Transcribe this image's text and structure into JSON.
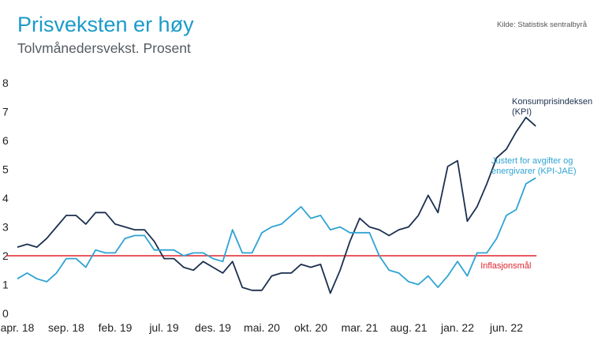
{
  "title": "Prisveksten er høy",
  "subtitle": "Tolvmånedersvekst. Prosent",
  "source": "Kilde: Statistisk sentralbyrå",
  "colors": {
    "kpi": "#1b2f4e",
    "kpi_jae": "#2fa3d3",
    "target": "#e0242c",
    "title": "#1a9bc9"
  },
  "chart_data": {
    "type": "line",
    "title": "Prisveksten er høy",
    "subtitle": "Tolvmånedersvekst. Prosent",
    "xlabel": "",
    "ylabel": "",
    "ylim": [
      0,
      8
    ],
    "yticks": [
      0,
      1,
      2,
      3,
      4,
      5,
      6,
      7,
      8
    ],
    "grid": false,
    "x_start": "apr. 18",
    "x_end": "aug. 22",
    "xtick_labels": [
      "apr. 18",
      "sep. 18",
      "feb. 19",
      "jul. 19",
      "des. 19",
      "mai. 20",
      "okt. 20",
      "mar. 21",
      "aug. 21",
      "jan. 22",
      "jun. 22"
    ],
    "series": [
      {
        "name": "Konsumprisindeksen (KPI)",
        "label_lines": [
          "Konsumprisindeksen",
          "(KPI)"
        ],
        "values": [
          2.3,
          2.4,
          2.3,
          2.6,
          3.0,
          3.4,
          3.4,
          3.1,
          3.5,
          3.5,
          3.1,
          3.0,
          2.9,
          2.9,
          2.5,
          1.9,
          1.9,
          1.6,
          1.5,
          1.8,
          1.6,
          1.4,
          1.8,
          0.9,
          0.8,
          0.8,
          1.3,
          1.4,
          1.4,
          1.7,
          1.6,
          1.7,
          0.7,
          1.5,
          2.5,
          3.3,
          3.0,
          2.9,
          2.7,
          2.9,
          3.0,
          3.4,
          4.1,
          3.5,
          5.1,
          5.3,
          3.2,
          3.7,
          4.5,
          5.4,
          5.7,
          6.3,
          6.8,
          6.5
        ]
      },
      {
        "name": "Justert for avgifter og energivarer (KPI-JAE)",
        "label_lines": [
          "Justert for avgifter og",
          "energivarer (KPI-JAE)"
        ],
        "values": [
          1.2,
          1.4,
          1.2,
          1.1,
          1.4,
          1.9,
          1.9,
          1.6,
          2.2,
          2.1,
          2.1,
          2.6,
          2.7,
          2.7,
          2.2,
          2.2,
          2.2,
          2.0,
          2.1,
          2.1,
          1.9,
          1.8,
          2.9,
          2.1,
          2.1,
          2.8,
          3.0,
          3.1,
          3.4,
          3.7,
          3.3,
          3.4,
          2.9,
          3.0,
          2.8,
          2.8,
          2.8,
          2.0,
          1.5,
          1.4,
          1.1,
          1.0,
          1.3,
          0.9,
          1.3,
          1.8,
          1.3,
          2.1,
          2.1,
          2.6,
          3.4,
          3.6,
          4.5,
          4.7
        ]
      }
    ],
    "reference_line": {
      "name": "Inflasjonsmål",
      "value": 2
    }
  }
}
